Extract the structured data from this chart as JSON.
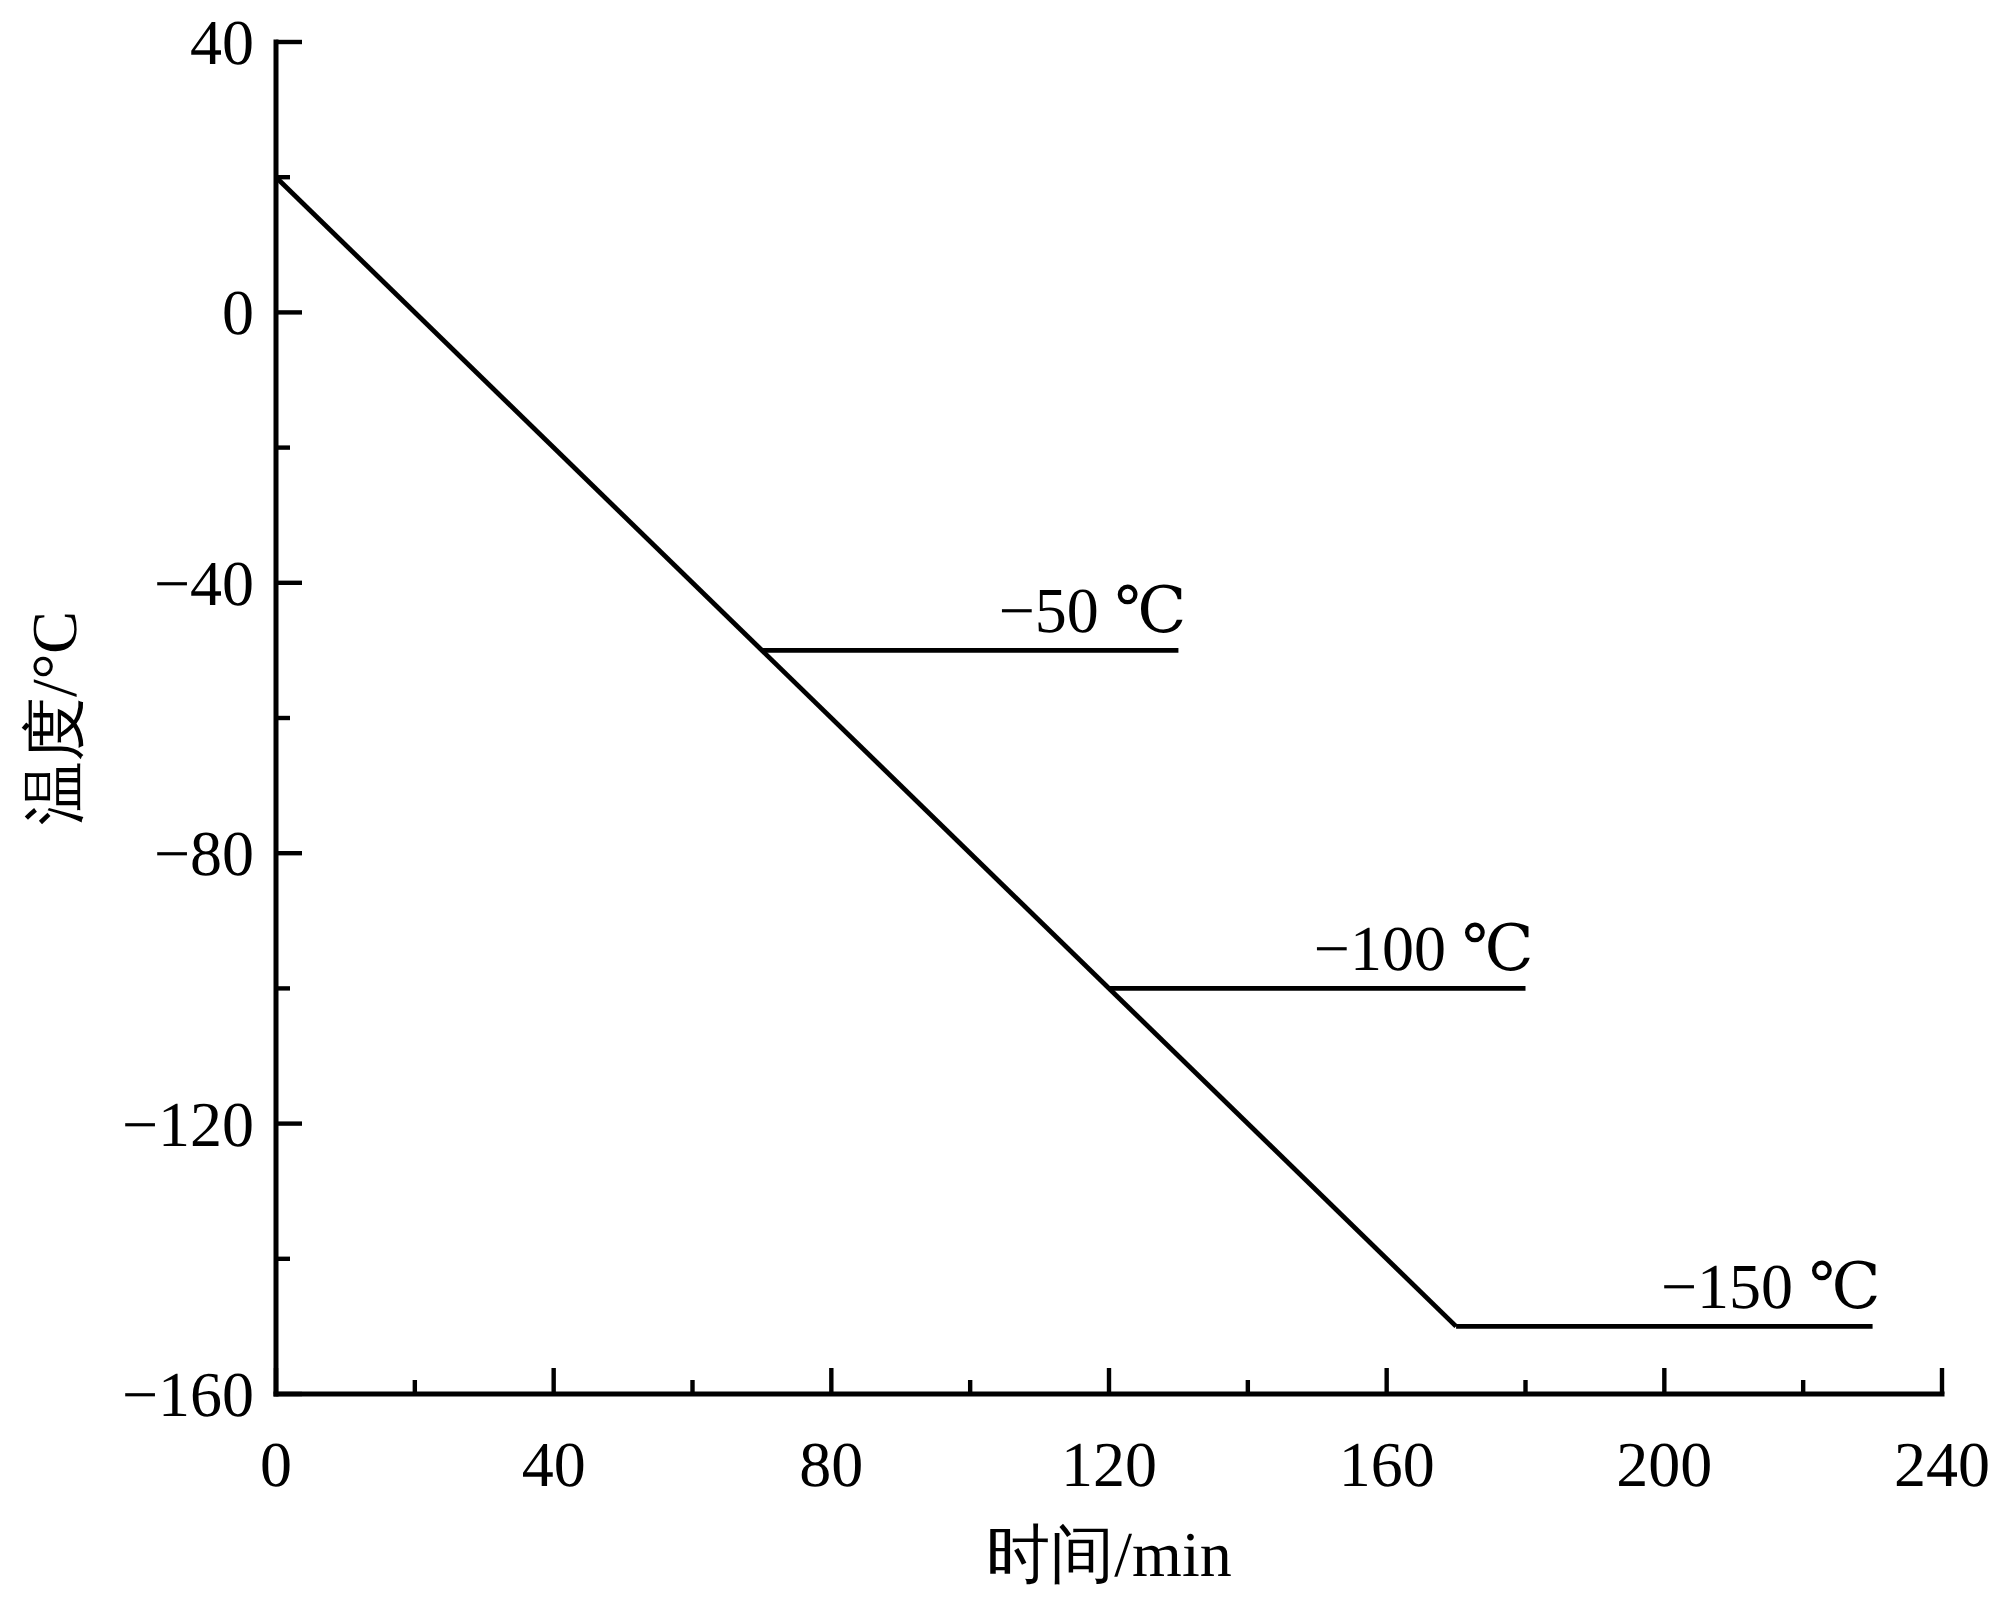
{
  "chart_data": {
    "type": "line",
    "xlabel": "时间/min",
    "ylabel": "温度/°C",
    "xlim": [
      0,
      240
    ],
    "xticks": [
      0,
      {
        "value": 20,
        "label": null
      },
      40,
      {
        "value": 60,
        "label": null
      },
      80,
      {
        "value": 100,
        "label": null
      },
      120,
      {
        "value": 140,
        "label": null
      },
      160,
      {
        "value": 180,
        "label": null
      },
      200,
      {
        "value": 220,
        "label": null
      },
      240
    ],
    "ylim": [
      -160,
      40
    ],
    "yticks": [
      -160,
      {
        "value": -140,
        "label": null
      },
      -120,
      {
        "value": -100,
        "label": null
      },
      -80,
      {
        "value": -60,
        "label": null
      },
      -40,
      {
        "value": -20,
        "label": null
      },
      0,
      {
        "value": 20,
        "label": null
      },
      40
    ],
    "series": [
      {
        "color": "#000000",
        "x": [
          0,
          170
        ],
        "values": [
          20,
          -150
        ]
      },
      {
        "name": "−50 ℃",
        "color": "#000000",
        "x": [
          70,
          130
        ],
        "values": [
          -50,
          -50
        ]
      },
      {
        "name": "−100 ℃",
        "color": "#000000",
        "x": [
          120,
          180
        ],
        "values": [
          -100,
          -100
        ]
      },
      {
        "name": "−150 ℃",
        "color": "#000000",
        "x": [
          170,
          230
        ],
        "values": [
          -150,
          -150
        ]
      }
    ],
    "line_style": "solid"
  }
}
